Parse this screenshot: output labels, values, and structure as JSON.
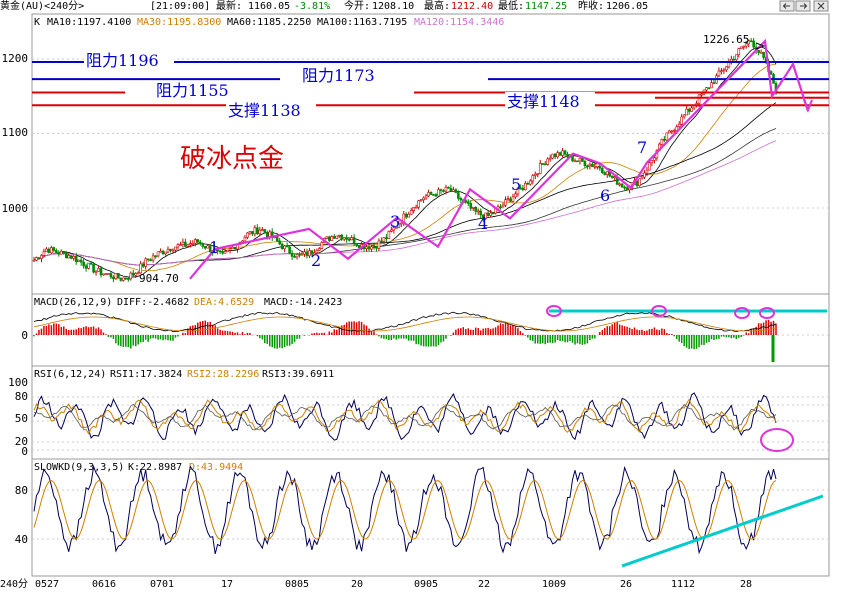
{
  "header": {
    "instrument": "黄金(AU)<240分>",
    "time": "[21:09:00]",
    "latest_label": "最新:",
    "latest_value": "1160.05",
    "change_pct": "-3.81%",
    "open_label": "今开:",
    "open_value": "1208.10",
    "high_label": "最高:",
    "high_value": "1212.40",
    "low_label": "最低:",
    "low_value": "1147.25",
    "prev_label": "昨收:",
    "prev_value": "1206.05",
    "nav_icons": [
      "arrow-left-icon",
      "arrow-right-icon",
      "close-icon"
    ]
  },
  "main_panel": {
    "indicator_line": {
      "k_label": "K",
      "items": [
        {
          "text": "MA10:1197.4100",
          "color": "#000000"
        },
        {
          "text": "MA30:1195.8300",
          "color": "#d08000"
        },
        {
          "text": "MA60:1185.2250",
          "color": "#000000"
        },
        {
          "text": "MA100:1163.7195",
          "color": "#000000"
        },
        {
          "text": "MA120:1154.3446",
          "color": "#d070d0"
        }
      ]
    },
    "y_ticks": [
      "1200",
      "1100",
      "1000"
    ],
    "annotations": {
      "title": "破冰点金",
      "peak_label": "1226.65",
      "trough_label": "904.70",
      "wave_numbers": [
        "1",
        "2",
        "3",
        "4",
        "5",
        "6",
        "7"
      ]
    },
    "levels": [
      {
        "label": "阻力1196",
        "value": 1196,
        "kind": "resistance",
        "color": "#0000cc"
      },
      {
        "label": "阻力1173",
        "value": 1173,
        "kind": "resistance",
        "color": "#0000cc"
      },
      {
        "label": "阻力1155",
        "value": 1155,
        "kind": "resistance",
        "color": "#dd0000"
      },
      {
        "label": "支撑1148",
        "value": 1148,
        "kind": "support",
        "color": "#dd0000"
      },
      {
        "label": "支撑1138",
        "value": 1138,
        "kind": "support",
        "color": "#dd0000"
      }
    ],
    "colors": {
      "up": "#cc0000",
      "down": "#008800",
      "wave": "#dd33dd",
      "trendline": "#00cccc"
    }
  },
  "macd_panel": {
    "label": "MACD(26,12,9)",
    "diff": "DIFF:-2.4682",
    "dea": "DEA:4.6529",
    "macd": "MACD:-14.2423",
    "y_ticks": [
      "0"
    ]
  },
  "rsi_panel": {
    "label": "RSI(6,12,24)",
    "rsi1": "RSI1:17.3824",
    "rsi2": "RSI2:28.2296",
    "rsi3": "RSI3:39.6911",
    "y_ticks": [
      "100",
      "80",
      "50",
      "20",
      "0"
    ]
  },
  "kd_panel": {
    "label": "SLOWKD(9,3,3,5)",
    "k": "K:22.8987",
    "d": "D:43.9494",
    "y_ticks": [
      "80",
      "40"
    ]
  },
  "x_axis": {
    "period_label": "240分",
    "labels": [
      "0527",
      "0616",
      "0701",
      "17",
      "0805",
      "20",
      "0905",
      "22",
      "1009",
      "26",
      "1112",
      "28"
    ]
  },
  "chart_data": {
    "type": "candlestick",
    "title": "",
    "ylim": [
      880,
      1240
    ],
    "key_points": [
      {
        "label": "904.70",
        "value": 904.7,
        "kind": "low"
      },
      {
        "label": "1226.65",
        "value": 1226.65,
        "kind": "high"
      }
    ],
    "wave_path_values": [
      {
        "label": "",
        "value": 905
      },
      {
        "label": "1",
        "value": 945
      },
      {
        "label": "2",
        "value": 972
      },
      {
        "label": "",
        "value": 932
      },
      {
        "label": "3",
        "value": 987
      },
      {
        "label": "",
        "value": 948
      },
      {
        "label": "4",
        "value": 1025
      },
      {
        "label": "",
        "value": 986
      },
      {
        "label": "5",
        "value": 1073
      },
      {
        "label": "6",
        "value": 1060
      },
      {
        "label": "",
        "value": 1027
      },
      {
        "label": "7",
        "value": 1061
      },
      {
        "label": "",
        "value": 1224
      },
      {
        "label": "",
        "value": 1150
      },
      {
        "label": "",
        "value": 1193
      },
      {
        "label": "",
        "value": 1130
      }
    ],
    "price_series_approx": [
      930,
      945,
      940,
      935,
      925,
      915,
      910,
      905,
      912,
      930,
      940,
      948,
      950,
      955,
      945,
      935,
      950,
      965,
      972,
      960,
      945,
      935,
      940,
      955,
      965,
      960,
      950,
      948,
      960,
      980,
      1000,
      1015,
      1020,
      1025,
      1010,
      995,
      988,
      1000,
      1015,
      1030,
      1050,
      1070,
      1073,
      1065,
      1060,
      1055,
      1040,
      1028,
      1035,
      1060,
      1090,
      1110,
      1130,
      1150,
      1170,
      1190,
      1210,
      1226,
      1200,
      1160
    ],
    "levels": [
      1196,
      1173,
      1155,
      1148,
      1138
    ],
    "series": [
      {
        "name": "MA10",
        "value": 1197.41
      },
      {
        "name": "MA30",
        "value": 1195.83
      },
      {
        "name": "MA60",
        "value": 1185.225
      },
      {
        "name": "MA100",
        "value": 1163.7195
      },
      {
        "name": "MA120",
        "value": 1154.3446
      }
    ],
    "indicators": {
      "macd": {
        "diff": -2.4682,
        "dea": 4.6529,
        "macd": -14.2423
      },
      "rsi": {
        "rsi1": 17.3824,
        "rsi2": 28.2296,
        "rsi3": 39.6911
      },
      "slowkd": {
        "k": 22.8987,
        "d": 43.9494
      }
    }
  }
}
